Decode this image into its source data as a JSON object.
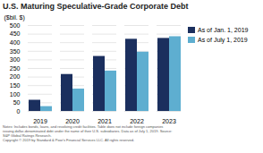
{
  "chart_data": {
    "type": "bar",
    "title": "U.S. Maturing Speculative-Grade Corporate Debt",
    "categories": [
      "2019",
      "2020",
      "2021",
      "2022",
      "2023"
    ],
    "series": [
      {
        "name": "As of Jan. 1, 2019",
        "color": "#1b2f5e",
        "values": [
          65,
          215,
          320,
          420,
          425
        ]
      },
      {
        "name": "As of July 1, 2019",
        "color": "#5eaed0",
        "values": [
          28,
          130,
          235,
          345,
          435
        ]
      }
    ],
    "ylabel": "($bil. $)",
    "ylim": [
      0,
      500
    ],
    "yticks": [
      0,
      50,
      100,
      150,
      200,
      250,
      300,
      350,
      400,
      450,
      500
    ],
    "grid": true,
    "legend": "right",
    "annotations": [
      "Notes: Includes bonds, loans, and revolving credit facilities. Table does not include foreign companies",
      "issuing dollar-denominated debt under the name of their U.S. subsidiaries. Data as of July 1, 2019. Source:",
      "S&P Global Ratings Research.",
      "Copyright © 2019 by Standard & Poor's Financial Services LLC. All rights reserved."
    ]
  }
}
